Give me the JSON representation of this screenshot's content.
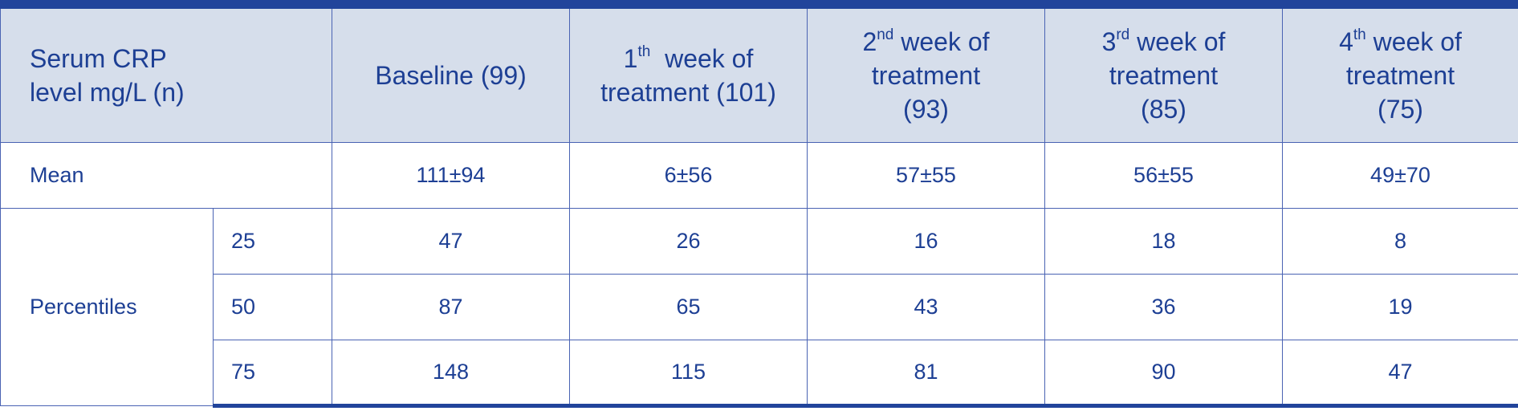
{
  "table": {
    "header": {
      "title_line1": "Serum CRP",
      "title_line2": "level mg/L (n)",
      "baseline": "Baseline (99)",
      "week1": {
        "num": "1",
        "sup": "th",
        "line1_rest": "week of",
        "line2": "treatment (101)"
      },
      "week2": {
        "num": "2",
        "sup": "nd",
        "line1_rest": "week of",
        "line2": "treatment",
        "line3": "(93)"
      },
      "week3": {
        "num": "3",
        "sup": "rd",
        "line1_rest": "week of",
        "line2": "treatment",
        "line3": "(85)"
      },
      "week4": {
        "num": "4",
        "sup": "th",
        "line1_rest": "week of",
        "line2": "treatment",
        "line3": "(75)"
      }
    },
    "mean_row": {
      "label": "Mean",
      "values": [
        "111±94",
        "6±56",
        "57±55",
        "56±55",
        "49±70"
      ]
    },
    "percentiles": {
      "label": "Percentiles",
      "rows": [
        {
          "p": "25",
          "values": [
            "47",
            "26",
            "16",
            "18",
            "8"
          ]
        },
        {
          "p": "50",
          "values": [
            "87",
            "65",
            "43",
            "36",
            "19"
          ]
        },
        {
          "p": "75",
          "values": [
            "148",
            "115",
            "81",
            "90",
            "47"
          ]
        }
      ]
    }
  }
}
